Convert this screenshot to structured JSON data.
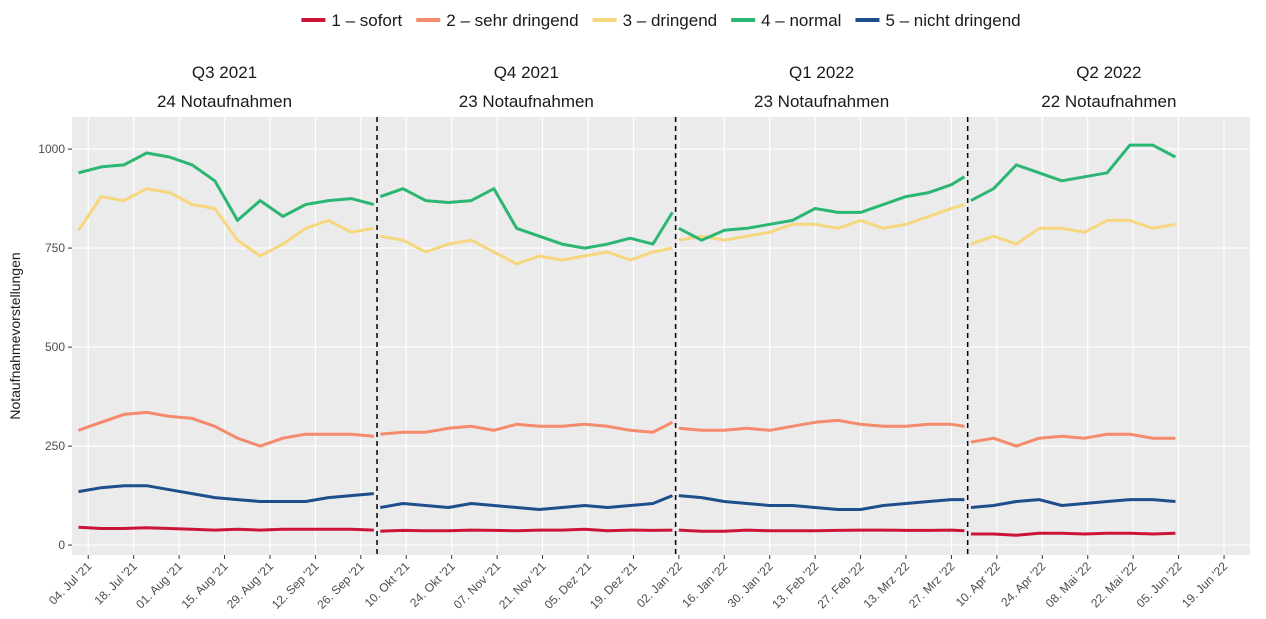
{
  "chart_data": {
    "type": "line",
    "y_label": "Notaufnahmevorstellungen",
    "x": [
      "2021-07-01",
      "2021-07-08",
      "2021-07-15",
      "2021-07-22",
      "2021-07-29",
      "2021-08-05",
      "2021-08-12",
      "2021-08-19",
      "2021-08-26",
      "2021-09-02",
      "2021-09-09",
      "2021-09-16",
      "2021-09-23",
      "2021-09-30",
      "2021-10-01",
      "2021-10-02",
      "2021-10-09",
      "2021-10-16",
      "2021-10-23",
      "2021-10-30",
      "2021-11-06",
      "2021-11-13",
      "2021-11-20",
      "2021-11-27",
      "2021-12-04",
      "2021-12-11",
      "2021-12-18",
      "2021-12-25",
      "2021-12-31",
      "2022-01-01",
      "2022-01-02",
      "2022-01-09",
      "2022-01-16",
      "2022-01-23",
      "2022-01-30",
      "2022-02-06",
      "2022-02-13",
      "2022-02-20",
      "2022-02-27",
      "2022-03-06",
      "2022-03-13",
      "2022-03-20",
      "2022-03-27",
      "2022-03-31",
      "2022-04-01",
      "2022-04-02",
      "2022-04-09",
      "2022-04-16",
      "2022-04-23",
      "2022-04-30",
      "2022-05-07",
      "2022-05-14",
      "2022-05-21",
      "2022-05-28",
      "2022-06-04"
    ],
    "series": [
      {
        "name": "1 – sofort",
        "color": "#cc1439",
        "values": [
          45,
          42,
          42,
          44,
          42,
          40,
          38,
          40,
          38,
          40,
          40,
          40,
          40,
          38,
          null,
          35,
          37,
          36,
          36,
          38,
          37,
          36,
          38,
          38,
          40,
          36,
          38,
          37,
          38,
          null,
          38,
          35,
          35,
          38,
          36,
          36,
          36,
          37,
          38,
          38,
          37,
          37,
          38,
          36,
          null,
          28,
          28,
          25,
          30,
          30,
          28,
          30,
          30,
          28,
          30
        ]
      },
      {
        "name": "2 – sehr dringend",
        "color": "#f58a6c",
        "values": [
          290,
          310,
          330,
          335,
          325,
          320,
          300,
          270,
          250,
          270,
          280,
          280,
          280,
          275,
          null,
          280,
          285,
          285,
          295,
          300,
          290,
          305,
          300,
          300,
          305,
          300,
          290,
          285,
          310,
          null,
          295,
          290,
          290,
          295,
          290,
          300,
          310,
          315,
          305,
          300,
          300,
          305,
          305,
          300,
          null,
          260,
          270,
          250,
          270,
          275,
          270,
          280,
          280,
          270,
          270
        ]
      },
      {
        "name": "3 – dringend",
        "color": "#f6d77e",
        "values": [
          795,
          880,
          870,
          900,
          890,
          860,
          850,
          770,
          730,
          760,
          800,
          820,
          790,
          800,
          null,
          780,
          770,
          740,
          760,
          770,
          740,
          710,
          730,
          720,
          730,
          740,
          720,
          740,
          750,
          null,
          770,
          780,
          770,
          780,
          790,
          810,
          810,
          800,
          820,
          800,
          810,
          830,
          850,
          860,
          null,
          760,
          780,
          760,
          800,
          800,
          790,
          820,
          820,
          800,
          810
        ]
      },
      {
        "name": "4 – normal",
        "color": "#2bb673",
        "values": [
          940,
          955,
          960,
          990,
          980,
          960,
          920,
          820,
          870,
          830,
          860,
          870,
          875,
          860,
          null,
          880,
          900,
          870,
          865,
          870,
          900,
          800,
          780,
          760,
          750,
          760,
          775,
          760,
          840,
          null,
          800,
          770,
          795,
          800,
          810,
          820,
          850,
          840,
          840,
          860,
          880,
          890,
          910,
          930,
          null,
          870,
          900,
          960,
          940,
          920,
          930,
          940,
          1010,
          1010,
          980
        ]
      },
      {
        "name": "5 – nicht dringend",
        "color": "#1f4e8c",
        "values": [
          135,
          145,
          150,
          150,
          140,
          130,
          120,
          115,
          110,
          110,
          110,
          120,
          125,
          130,
          null,
          95,
          105,
          100,
          95,
          105,
          100,
          95,
          90,
          95,
          100,
          95,
          100,
          105,
          125,
          null,
          125,
          120,
          110,
          105,
          100,
          100,
          95,
          90,
          90,
          100,
          105,
          110,
          115,
          115,
          null,
          95,
          100,
          110,
          115,
          100,
          105,
          110,
          115,
          115,
          110
        ]
      }
    ],
    "xlim": [
      "2021-06-29",
      "2022-06-27"
    ],
    "ylim": [
      -25,
      1081
    ],
    "yticks": [
      0,
      250,
      500,
      750,
      1000
    ],
    "xticks": [
      {
        "value": "2021-07-04",
        "label": "04. Jul '21"
      },
      {
        "value": "2021-07-18",
        "label": "18. Jul '21"
      },
      {
        "value": "2021-08-01",
        "label": "01. Aug '21"
      },
      {
        "value": "2021-08-15",
        "label": "15. Aug '21"
      },
      {
        "value": "2021-08-29",
        "label": "29. Aug '21"
      },
      {
        "value": "2021-09-12",
        "label": "12. Sep '21"
      },
      {
        "value": "2021-09-26",
        "label": "26. Sep '21"
      },
      {
        "value": "2021-10-10",
        "label": "10. Okt '21"
      },
      {
        "value": "2021-10-24",
        "label": "24. Okt '21"
      },
      {
        "value": "2021-11-07",
        "label": "07. Nov '21"
      },
      {
        "value": "2021-11-21",
        "label": "21. Nov '21"
      },
      {
        "value": "2021-12-05",
        "label": "05. Dez '21"
      },
      {
        "value": "2021-12-19",
        "label": "19. Dez '21"
      },
      {
        "value": "2022-01-02",
        "label": "02. Jan '22"
      },
      {
        "value": "2022-01-16",
        "label": "16. Jan '22"
      },
      {
        "value": "2022-01-30",
        "label": "30. Jan '22"
      },
      {
        "value": "2022-02-13",
        "label": "13. Feb '22"
      },
      {
        "value": "2022-02-27",
        "label": "27. Feb '22"
      },
      {
        "value": "2022-03-13",
        "label": "13. Mrz '22"
      },
      {
        "value": "2022-03-27",
        "label": "27. Mrz '22"
      },
      {
        "value": "2022-04-10",
        "label": "10. Apr '22"
      },
      {
        "value": "2022-04-24",
        "label": "24. Apr '22"
      },
      {
        "value": "2022-05-08",
        "label": "08. Mai '22"
      },
      {
        "value": "2022-05-22",
        "label": "22. Mai '22"
      },
      {
        "value": "2022-06-05",
        "label": "05. Jun '22"
      },
      {
        "value": "2022-06-19",
        "label": "19. Jun '22"
      }
    ],
    "vlines": [
      "2021-10-01",
      "2022-01-01",
      "2022-04-01"
    ],
    "annotations": [
      {
        "quarter": "Q3 2021",
        "label": "24 Notaufnahmen"
      },
      {
        "quarter": "Q4 2021",
        "label": "23 Notaufnahmen"
      },
      {
        "quarter": "Q1 2022",
        "label": "23 Notaufnahmen"
      },
      {
        "quarter": "Q2 2022",
        "label": "22 Notaufnahmen"
      }
    ],
    "grid": true,
    "legend": "top"
  }
}
